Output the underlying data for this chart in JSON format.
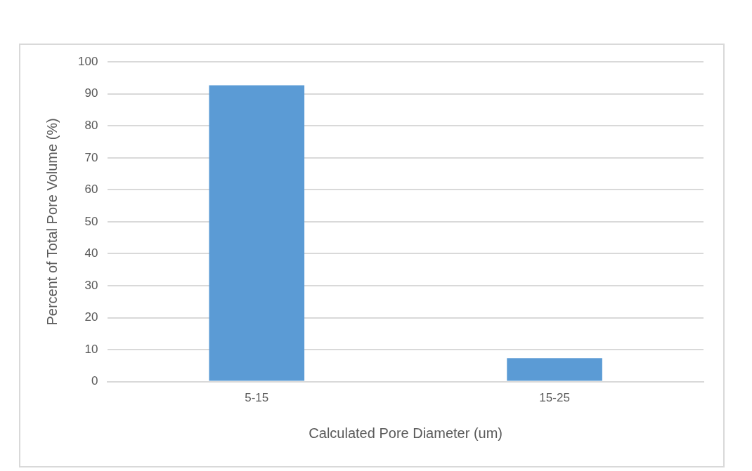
{
  "chart_data": {
    "type": "bar",
    "xlabel": "Calculated Pore Diameter (um)",
    "ylabel": "Percent of Total Pore Volume (%)",
    "categories": [
      "5-15",
      "15-25"
    ],
    "values": [
      92.7,
      7.3
    ],
    "color": "#5b9bd5",
    "ylim": [
      0,
      100
    ],
    "yticks": [
      0,
      10,
      20,
      30,
      40,
      50,
      60,
      70,
      80,
      90,
      100
    ],
    "grid": "y"
  }
}
